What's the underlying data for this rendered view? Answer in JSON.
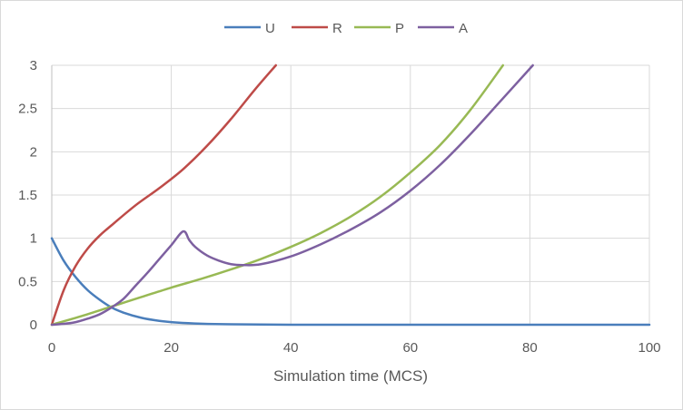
{
  "chart_data": {
    "type": "line",
    "title": "",
    "xlabel": "Simulation time (MCS)",
    "ylabel": "",
    "xlim": [
      0,
      100
    ],
    "ylim": [
      0,
      3
    ],
    "xticks": [
      0,
      20,
      40,
      60,
      80,
      100
    ],
    "yticks": [
      0,
      0.5,
      1,
      1.5,
      2,
      2.5,
      3
    ],
    "xtick_labels": [
      "0",
      "20",
      "40",
      "60",
      "80",
      "100"
    ],
    "ytick_labels": [
      "0",
      "0.5",
      "1",
      "1.5",
      "2",
      "2.5",
      "3"
    ],
    "grid": true,
    "legend_position": "top",
    "series": [
      {
        "name": "U",
        "color": "#4a7ebb",
        "x": [
          0,
          2,
          4,
          6,
          8,
          10,
          12,
          15,
          18,
          21,
          25,
          30,
          40,
          60,
          80,
          100
        ],
        "y": [
          1.0,
          0.74,
          0.55,
          0.4,
          0.29,
          0.2,
          0.14,
          0.08,
          0.045,
          0.025,
          0.012,
          0.005,
          0.0,
          0.0,
          0.0,
          0.0
        ]
      },
      {
        "name": "R",
        "color": "#be4b48",
        "x": [
          0,
          2,
          4,
          6,
          8,
          10,
          14,
          18,
          22,
          26,
          30,
          34,
          37.5
        ],
        "y": [
          0,
          0.4,
          0.68,
          0.88,
          1.03,
          1.15,
          1.38,
          1.58,
          1.8,
          2.07,
          2.38,
          2.72,
          3.0
        ]
      },
      {
        "name": "P",
        "color": "#98b954",
        "x": [
          0,
          5,
          10,
          15,
          20,
          25,
          30,
          35,
          40,
          45,
          50,
          55,
          60,
          65,
          70,
          75.5
        ],
        "y": [
          0,
          0.1,
          0.21,
          0.32,
          0.43,
          0.53,
          0.64,
          0.76,
          0.9,
          1.06,
          1.25,
          1.48,
          1.76,
          2.08,
          2.48,
          3.0
        ]
      },
      {
        "name": "A",
        "color": "#7d60a0",
        "x": [
          0,
          2,
          4,
          6,
          8,
          10,
          12,
          14,
          16,
          18,
          20,
          22,
          23,
          24,
          26,
          28,
          30,
          32,
          35,
          40,
          45,
          50,
          55,
          60,
          65,
          70,
          75,
          80.5
        ],
        "y": [
          0,
          0.01,
          0.03,
          0.07,
          0.12,
          0.2,
          0.3,
          0.45,
          0.6,
          0.76,
          0.92,
          1.08,
          0.98,
          0.9,
          0.8,
          0.74,
          0.7,
          0.69,
          0.7,
          0.79,
          0.93,
          1.1,
          1.3,
          1.55,
          1.85,
          2.2,
          2.58,
          3.0
        ]
      }
    ]
  }
}
